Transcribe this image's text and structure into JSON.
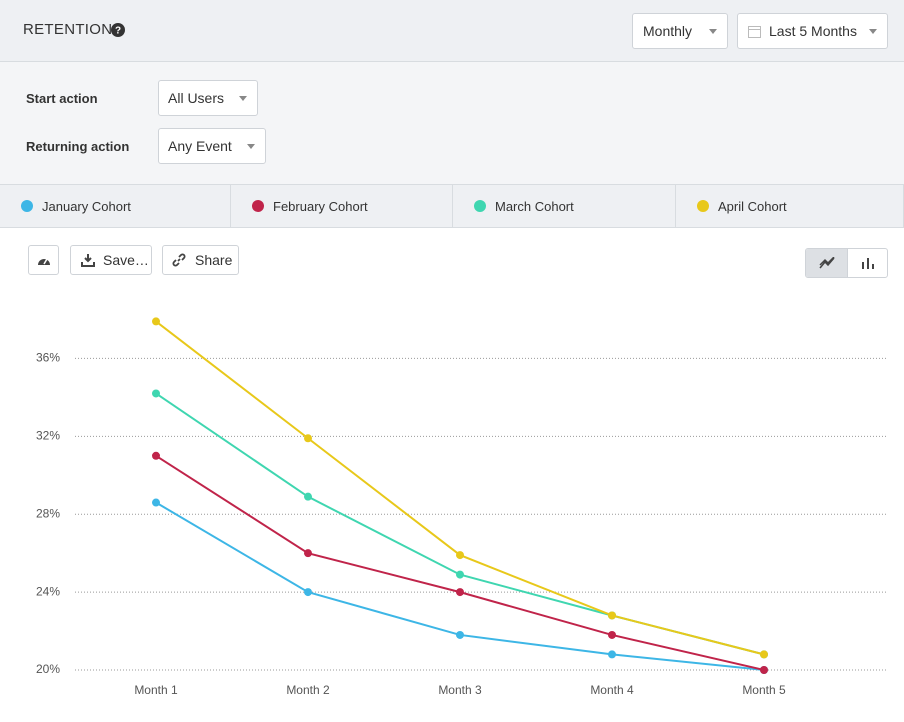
{
  "header": {
    "title": "RETENTION",
    "interval": "Monthly",
    "range": "Last 5 Months"
  },
  "filters": {
    "start_label": "Start action",
    "start_value": "All Users",
    "returning_label": "Returning action",
    "returning_value": "Any Event"
  },
  "toolbar": {
    "save": "Save…",
    "share": "Share"
  },
  "chart_data": {
    "type": "line",
    "categories": [
      "Month 1",
      "Month 2",
      "Month 3",
      "Month 4",
      "Month 5"
    ],
    "series": [
      {
        "name": "January Cohort",
        "color": "#3db6e6",
        "values": [
          28.6,
          24,
          21.8,
          20.8,
          20
        ]
      },
      {
        "name": "February Cohort",
        "color": "#c0244a",
        "values": [
          31.0,
          26.0,
          24,
          21.8,
          20
        ]
      },
      {
        "name": "March Cohort",
        "color": "#3fd6b0",
        "values": [
          34.2,
          28.9,
          24.9,
          22.8,
          20.8
        ]
      },
      {
        "name": "April Cohort",
        "color": "#e8c81a",
        "values": [
          37.9,
          31.9,
          25.9,
          22.8,
          20.8
        ]
      }
    ],
    "ylim": [
      20,
      39
    ],
    "yticks": [
      {
        "value": 20,
        "label": "20%"
      },
      {
        "value": 24,
        "label": "24%"
      },
      {
        "value": 28,
        "label": "28%"
      },
      {
        "value": 32,
        "label": "32%"
      },
      {
        "value": 36,
        "label": "36%"
      }
    ],
    "grid": true
  }
}
